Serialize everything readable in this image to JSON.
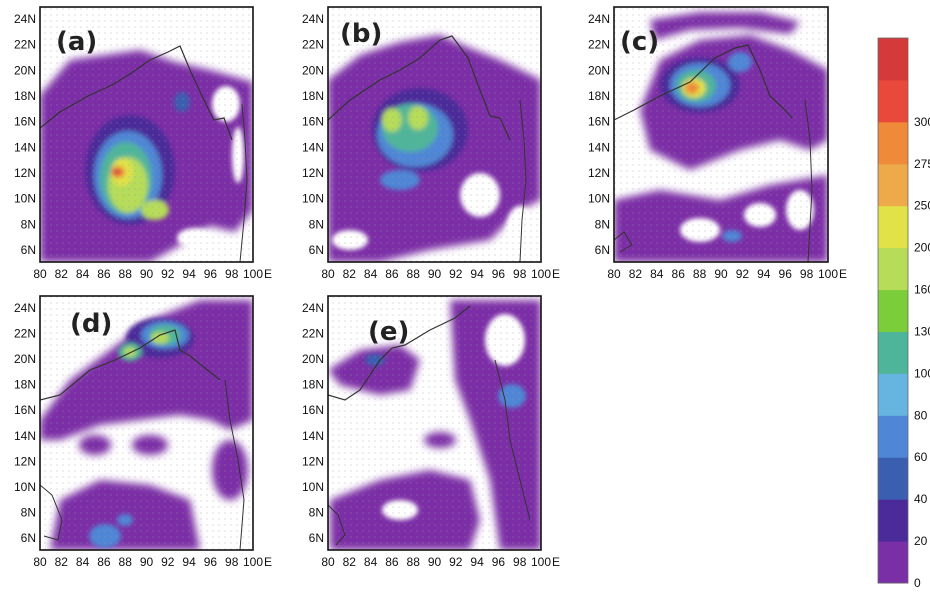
{
  "panels": [
    {
      "label": "(a)"
    },
    {
      "label": "(b)"
    },
    {
      "label": "(c)"
    },
    {
      "label": "(d)"
    },
    {
      "label": "(e)"
    }
  ],
  "axes": {
    "lon_ticks": [
      "80",
      "82",
      "84",
      "86",
      "88",
      "90",
      "92",
      "94",
      "96",
      "98",
      "100"
    ],
    "lon_unit": "E",
    "lat_ticks": [
      "24N",
      "22N",
      "20N",
      "18N",
      "16N",
      "14N",
      "12N",
      "10N",
      "8N",
      "6N"
    ]
  },
  "colorbar": {
    "levels": [
      "0",
      "20",
      "40",
      "60",
      "80",
      "100",
      "130",
      "160",
      "200",
      "250",
      "275",
      "300"
    ],
    "colors": [
      "#7b2fa6",
      "#4b2a9a",
      "#3a5fb0",
      "#4f86d6",
      "#66b4e0",
      "#4fb59a",
      "#7ccd3a",
      "#b6dc5a",
      "#e1e247",
      "#eea94b",
      "#ef8a3a",
      "#e8493a",
      "#d43a3a"
    ]
  },
  "colors": {
    "background": "#ffffff",
    "no_data": "#ffffff",
    "coast": "#333333",
    "grid_dot": "#9a9a9a"
  }
}
